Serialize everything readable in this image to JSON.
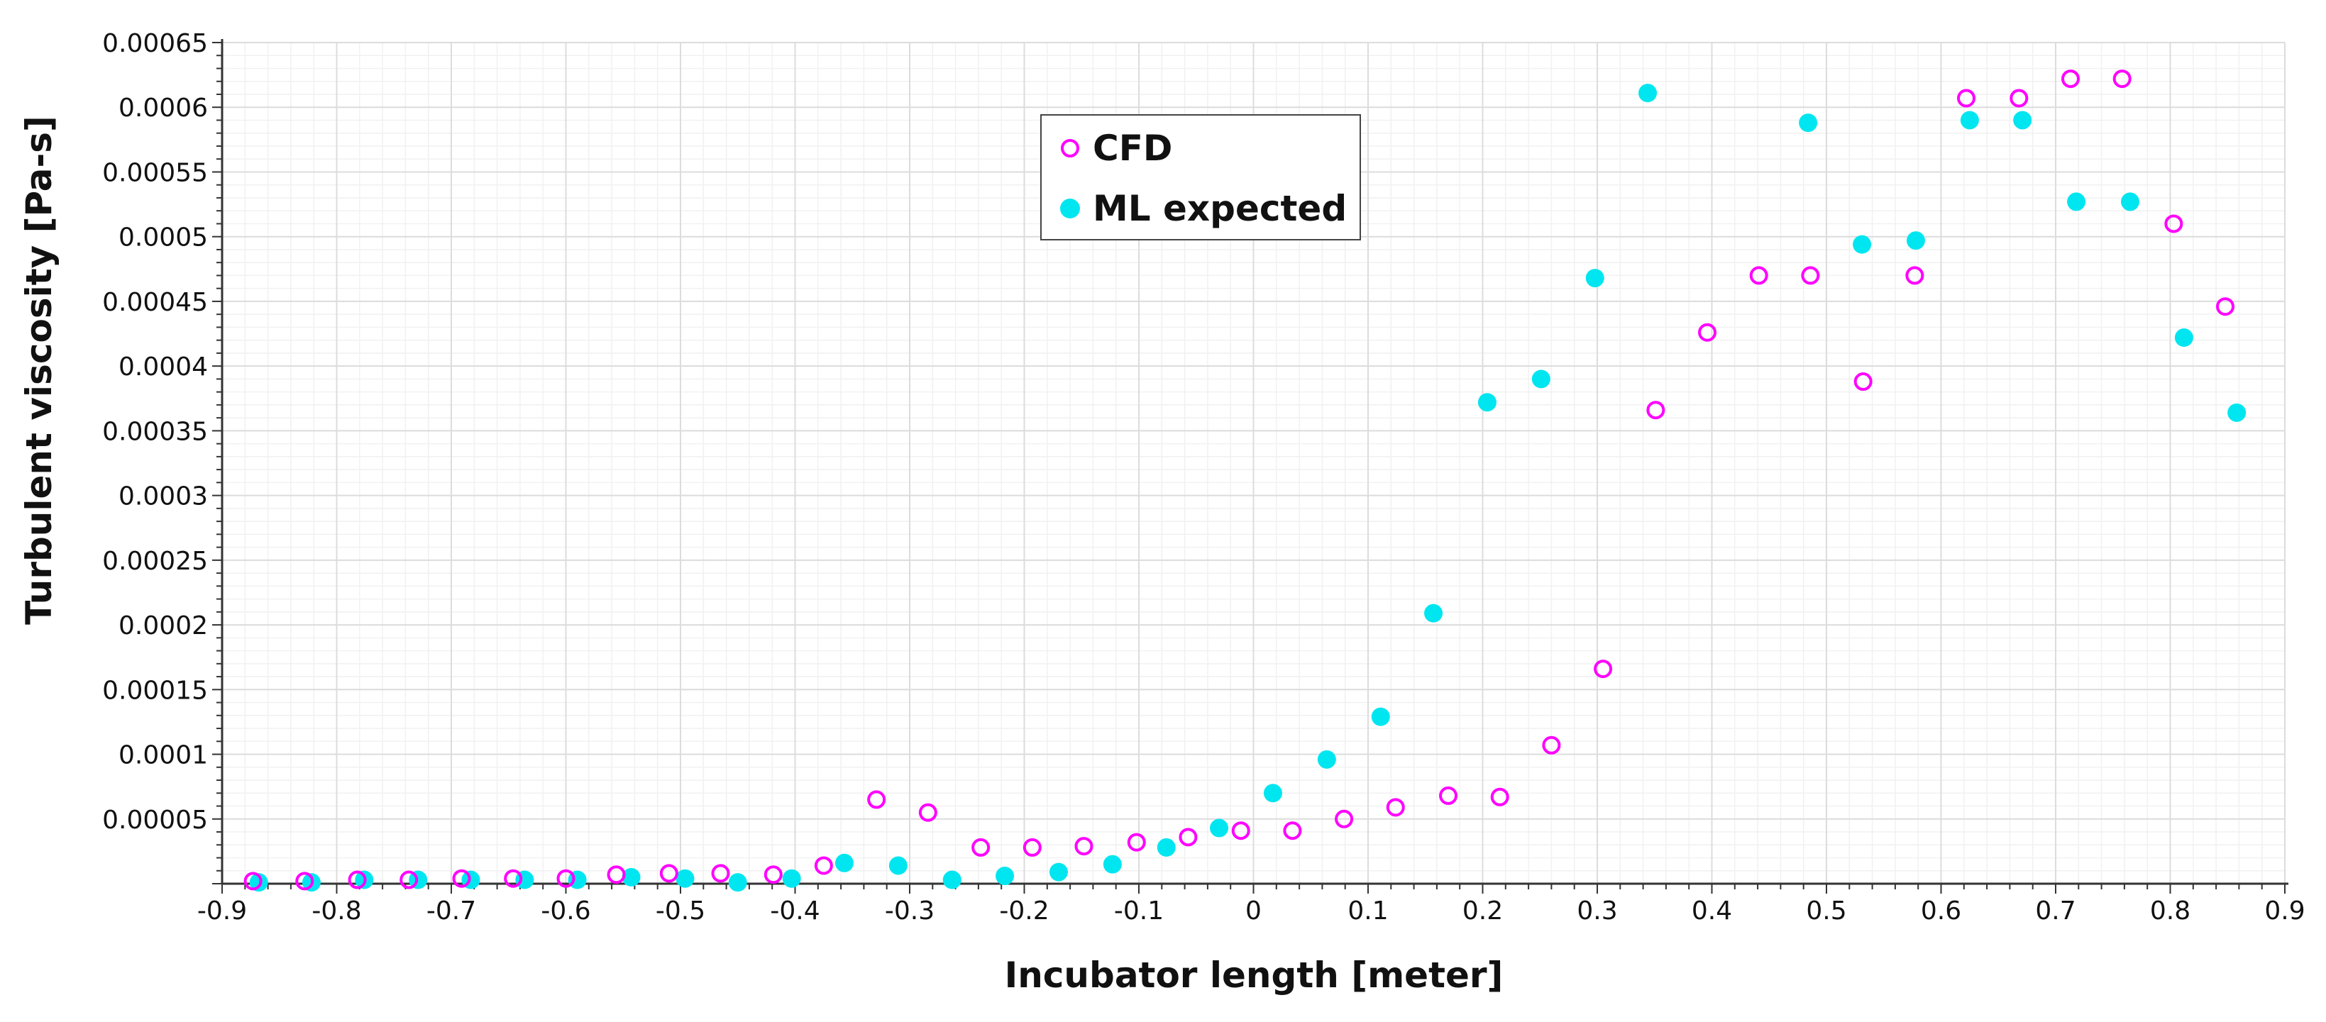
{
  "chart_data": {
    "type": "scatter",
    "title": "",
    "xlabel": "Incubator length [meter]",
    "ylabel": "Turbulent viscosity [Pa-s]",
    "xlim": [
      -0.9,
      0.9
    ],
    "ylim": [
      0,
      0.00065
    ],
    "x_ticks": [
      -0.9,
      -0.8,
      -0.7,
      -0.6,
      -0.5,
      -0.4,
      -0.3,
      -0.2,
      -0.1,
      0,
      0.1,
      0.2,
      0.3,
      0.4,
      0.5,
      0.6,
      0.7,
      0.8,
      0.9
    ],
    "x_tick_labels": [
      "-0.9",
      "-0.8",
      "-0.7",
      "-0.6",
      "-0.5",
      "-0.4",
      "-0.3",
      "-0.2",
      "-0.1",
      "0",
      "0.1",
      "0.2",
      "0.3",
      "0.4",
      "0.5",
      "0.6",
      "0.7",
      "0.8",
      "0.9"
    ],
    "y_ticks": [
      5e-05,
      0.0001,
      0.00015,
      0.0002,
      0.00025,
      0.0003,
      0.00035,
      0.0004,
      0.00045,
      0.0005,
      0.00055,
      0.0006,
      0.00065
    ],
    "y_tick_labels": [
      "0.00005",
      "0.0001",
      "0.00015",
      "0.0002",
      "0.00025",
      "0.0003",
      "0.00035",
      "0.0004",
      "0.00045",
      "0.0005",
      "0.00055",
      "0.0006",
      "0.00065"
    ],
    "grid": true,
    "legend_position": "top-center",
    "series": [
      {
        "name": "CFD",
        "marker": "hollow-circle",
        "color": "#ff00ff",
        "points": [
          [
            -0.873,
            2e-06
          ],
          [
            -0.828,
            2e-06
          ],
          [
            -0.782,
            3e-06
          ],
          [
            -0.737,
            3e-06
          ],
          [
            -0.691,
            4e-06
          ],
          [
            -0.646,
            4e-06
          ],
          [
            -0.6,
            4e-06
          ],
          [
            -0.556,
            7e-06
          ],
          [
            -0.51,
            8e-06
          ],
          [
            -0.465,
            8e-06
          ],
          [
            -0.419,
            7e-06
          ],
          [
            -0.375,
            1.4e-05
          ],
          [
            -0.329,
            6.5e-05
          ],
          [
            -0.284,
            5.5e-05
          ],
          [
            -0.238,
            2.8e-05
          ],
          [
            -0.193,
            2.8e-05
          ],
          [
            -0.148,
            2.9e-05
          ],
          [
            -0.102,
            3.2e-05
          ],
          [
            -0.057,
            3.6e-05
          ],
          [
            -0.011,
            4.1e-05
          ],
          [
            0.034,
            4.1e-05
          ],
          [
            0.079,
            5e-05
          ],
          [
            0.124,
            5.9e-05
          ],
          [
            0.17,
            6.8e-05
          ],
          [
            0.215,
            6.7e-05
          ],
          [
            0.26,
            0.000107
          ],
          [
            0.305,
            0.000166
          ],
          [
            0.351,
            0.000366
          ],
          [
            0.396,
            0.000426
          ],
          [
            0.441,
            0.00047
          ],
          [
            0.486,
            0.00047
          ],
          [
            0.532,
            0.000388
          ],
          [
            0.577,
            0.00047
          ],
          [
            0.622,
            0.000607
          ],
          [
            0.668,
            0.000607
          ],
          [
            0.713,
            0.000622
          ],
          [
            0.758,
            0.000622
          ],
          [
            0.803,
            0.00051
          ],
          [
            0.848,
            0.000446
          ]
        ]
      },
      {
        "name": "ML expected",
        "marker": "filled-circle",
        "color": "#00e6f0",
        "points": [
          [
            -0.868,
            1e-06
          ],
          [
            -0.822,
            1e-06
          ],
          [
            -0.776,
            3e-06
          ],
          [
            -0.729,
            3e-06
          ],
          [
            -0.683,
            3e-06
          ],
          [
            -0.636,
            3e-06
          ],
          [
            -0.59,
            3e-06
          ],
          [
            -0.543,
            5e-06
          ],
          [
            -0.496,
            4e-06
          ],
          [
            -0.45,
            1e-06
          ],
          [
            -0.403,
            4e-06
          ],
          [
            -0.357,
            1.6e-05
          ],
          [
            -0.31,
            1.4e-05
          ],
          [
            -0.263,
            3e-06
          ],
          [
            -0.217,
            6e-06
          ],
          [
            -0.17,
            9e-06
          ],
          [
            -0.123,
            1.5e-05
          ],
          [
            -0.076,
            2.8e-05
          ],
          [
            -0.03,
            4.3e-05
          ],
          [
            0.017,
            7e-05
          ],
          [
            0.064,
            9.6e-05
          ],
          [
            0.111,
            0.000129
          ],
          [
            0.157,
            0.000209
          ],
          [
            0.204,
            0.000372
          ],
          [
            0.251,
            0.00039
          ],
          [
            0.298,
            0.000468
          ],
          [
            0.344,
            0.000611
          ],
          [
            0.484,
            0.000588
          ],
          [
            0.531,
            0.000494
          ],
          [
            0.578,
            0.000497
          ],
          [
            0.625,
            0.00059
          ],
          [
            0.671,
            0.00059
          ],
          [
            0.718,
            0.000527
          ],
          [
            0.765,
            0.000527
          ],
          [
            0.812,
            0.000422
          ],
          [
            0.858,
            0.000364
          ]
        ]
      }
    ]
  }
}
